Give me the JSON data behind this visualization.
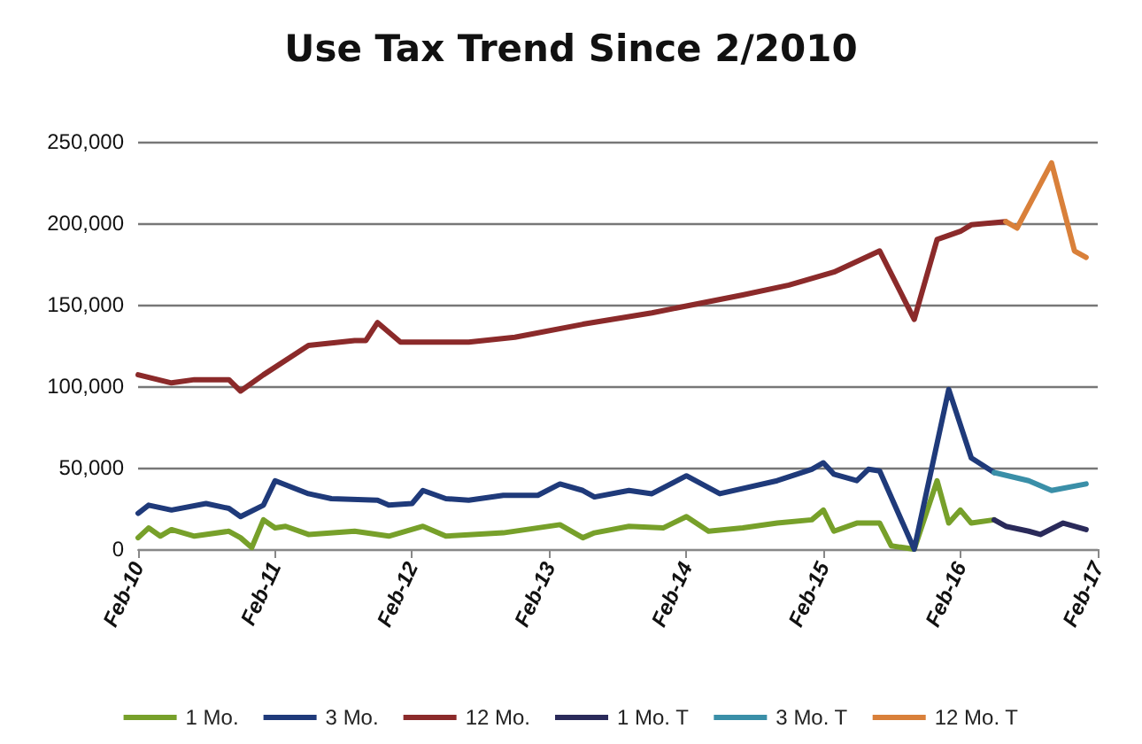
{
  "chart_data": {
    "type": "line",
    "title": "Use Tax Trend Since 2/2010",
    "xlim": [
      "2010-02",
      "2017-02"
    ],
    "xticks": [
      {
        "value": "2010-02",
        "label": "Feb-10"
      },
      {
        "value": "2011-02",
        "label": "Feb-11"
      },
      {
        "value": "2012-02",
        "label": "Feb-12"
      },
      {
        "value": "2013-02",
        "label": "Feb-13"
      },
      {
        "value": "2014-02",
        "label": "Feb-14"
      },
      {
        "value": "2015-02",
        "label": "Feb-15"
      },
      {
        "value": "2016-02",
        "label": "Feb-16"
      },
      {
        "value": "2017-02",
        "label": "Feb-17"
      }
    ],
    "ylim": [
      0,
      250000
    ],
    "yticks": [
      {
        "value": 0,
        "label": "0"
      },
      {
        "value": 50000,
        "label": "50,000"
      },
      {
        "value": 100000,
        "label": "100,000"
      },
      {
        "value": 150000,
        "label": "150,000"
      },
      {
        "value": 200000,
        "label": "200,000"
      },
      {
        "value": 250000,
        "label": "250,000"
      }
    ],
    "grid": "y",
    "legend": "bottom",
    "marker": "none",
    "line_style": "solid",
    "series": [
      {
        "name": "1 Mo.",
        "color": "#77a02a",
        "x": [
          "2010-02",
          "2010-03",
          "2010-04",
          "2010-05",
          "2010-07",
          "2010-10",
          "2010-11",
          "2010-12",
          "2011-01",
          "2011-02",
          "2011-03",
          "2011-05",
          "2011-09",
          "2011-12",
          "2012-03",
          "2012-05",
          "2012-10",
          "2013-03",
          "2013-05",
          "2013-06",
          "2013-09",
          "2013-12",
          "2014-02",
          "2014-04",
          "2014-07",
          "2014-10",
          "2015-01",
          "2015-02",
          "2015-03",
          "2015-05",
          "2015-07",
          "2015-08",
          "2015-10",
          "2015-12",
          "2016-01",
          "2016-02",
          "2016-03",
          "2016-05"
        ],
        "values": [
          7000,
          13000,
          8000,
          12000,
          8000,
          11000,
          7000,
          1000,
          18000,
          13000,
          14000,
          9000,
          11000,
          8000,
          14000,
          8000,
          10000,
          15000,
          7000,
          10000,
          14000,
          13000,
          20000,
          11000,
          13000,
          16000,
          18000,
          24000,
          11000,
          16000,
          16000,
          2000,
          0,
          42000,
          16000,
          24000,
          16000,
          18000
        ]
      },
      {
        "name": "3 Mo.",
        "color": "#1f3a7a",
        "x": [
          "2010-02",
          "2010-03",
          "2010-05",
          "2010-08",
          "2010-10",
          "2010-11",
          "2011-01",
          "2011-02",
          "2011-05",
          "2011-07",
          "2011-11",
          "2011-12",
          "2012-02",
          "2012-03",
          "2012-05",
          "2012-07",
          "2012-10",
          "2013-01",
          "2013-03",
          "2013-05",
          "2013-06",
          "2013-09",
          "2013-11",
          "2014-02",
          "2014-05",
          "2014-10",
          "2015-01",
          "2015-02",
          "2015-03",
          "2015-05",
          "2015-06",
          "2015-07",
          "2015-10",
          "2016-01",
          "2016-03",
          "2016-05"
        ],
        "values": [
          22000,
          27000,
          24000,
          28000,
          25000,
          20000,
          27000,
          42000,
          34000,
          31000,
          30000,
          27000,
          28000,
          36000,
          31000,
          30000,
          33000,
          33000,
          40000,
          36000,
          32000,
          36000,
          34000,
          45000,
          34000,
          42000,
          49000,
          53000,
          46000,
          42000,
          49000,
          48000,
          0,
          98000,
          56000,
          47000
        ]
      },
      {
        "name": "12 Mo.",
        "color": "#8b2a2a",
        "x": [
          "2010-02",
          "2010-05",
          "2010-07",
          "2010-10",
          "2010-11",
          "2011-01",
          "2011-05",
          "2011-09",
          "2011-10",
          "2011-11",
          "2012-01",
          "2012-07",
          "2012-11",
          "2013-05",
          "2013-11",
          "2014-07",
          "2014-11",
          "2015-03",
          "2015-07",
          "2015-10",
          "2015-12",
          "2016-02",
          "2016-03",
          "2016-06"
        ],
        "values": [
          107000,
          102000,
          104000,
          104000,
          97000,
          107000,
          125000,
          128000,
          128000,
          139000,
          127000,
          127000,
          130000,
          138000,
          145000,
          156000,
          162000,
          170000,
          183000,
          141000,
          190000,
          195000,
          199000,
          201000
        ]
      },
      {
        "name": "1 Mo. T",
        "color": "#2a2a5a",
        "x": [
          "2016-05",
          "2016-06",
          "2016-08",
          "2016-09",
          "2016-11",
          "2017-01"
        ],
        "values": [
          18000,
          14000,
          11000,
          9000,
          16000,
          12000
        ]
      },
      {
        "name": "3 Mo. T",
        "color": "#3a8fa8",
        "x": [
          "2016-05",
          "2016-08",
          "2016-10",
          "2017-01"
        ],
        "values": [
          47000,
          42000,
          36000,
          40000
        ]
      },
      {
        "name": "12 Mo. T",
        "color": "#d9803a",
        "x": [
          "2016-06",
          "2016-07",
          "2016-10",
          "2016-12",
          "2017-01"
        ],
        "values": [
          201000,
          197000,
          237000,
          183000,
          179000
        ]
      }
    ]
  }
}
